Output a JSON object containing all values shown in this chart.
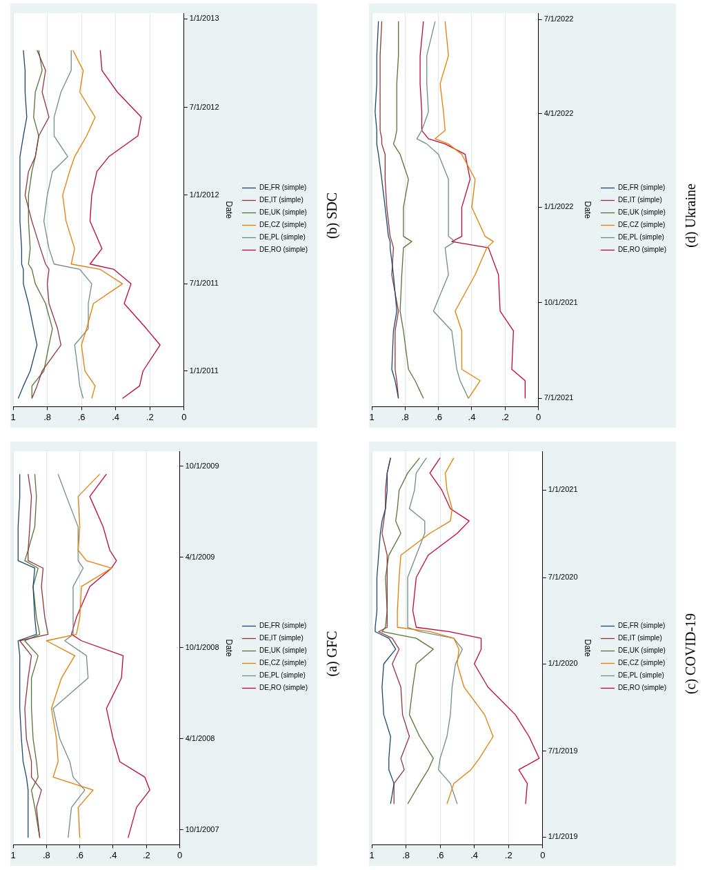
{
  "chart_data": [
    {
      "type": "line",
      "orientation": "horizontal",
      "annotations": [
        "(a) GFC"
      ],
      "ylabel": "Date",
      "legend": "right",
      "grid": "x",
      "marker": "none",
      "line_style": "solid",
      "ylim": [
        "2007-09-01",
        "2009-10-31"
      ],
      "yticks": [
        {
          "value": "2007-10-01",
          "label": "10/1/2007"
        },
        {
          "value": "2008-04-01",
          "label": "4/1/2008"
        },
        {
          "value": "2008-10-01",
          "label": "10/1/2008"
        },
        {
          "value": "2009-04-01",
          "label": "4/1/2009"
        },
        {
          "value": "2009-10-01",
          "label": "10/1/2009"
        }
      ],
      "xlim": [
        1,
        0
      ],
      "xticks": [
        {
          "value": 0,
          "label": "0"
        },
        {
          "value": 0.2,
          "label": ".2"
        },
        {
          "value": 0.4,
          "label": ".4"
        },
        {
          "value": 0.6,
          "label": ".6"
        },
        {
          "value": 0.8,
          "label": ".8"
        },
        {
          "value": 1,
          "label": "1"
        }
      ],
      "x": [
        "2007-09-15",
        "2007-11-15",
        "2007-12-20",
        "2008-01-15",
        "2008-02-15",
        "2008-04-01",
        "2008-06-01",
        "2008-08-01",
        "2008-09-15",
        "2008-10-15",
        "2008-10-28",
        "2008-12-01",
        "2009-02-01",
        "2009-03-10",
        "2009-03-25",
        "2009-04-15",
        "2009-06-01",
        "2009-08-01",
        "2009-09-15"
      ],
      "series": [
        {
          "name": "DE,FR (simple)",
          "color": "#1a476f",
          "values": [
            0.91,
            0.91,
            0.91,
            0.92,
            0.94,
            0.95,
            0.96,
            0.96,
            0.96,
            0.97,
            0.86,
            0.87,
            0.88,
            0.87,
            0.97,
            0.97,
            0.97,
            0.96,
            0.96
          ]
        },
        {
          "name": "DE,IT (simple)",
          "color": "#90353b",
          "values": [
            0.84,
            0.86,
            0.83,
            0.89,
            0.89,
            0.92,
            0.93,
            0.91,
            0.89,
            0.96,
            0.79,
            0.81,
            0.83,
            0.82,
            0.91,
            0.91,
            0.9,
            0.89,
            0.91
          ]
        },
        {
          "name": "DE,UK (simple)",
          "color": "#55752f",
          "values": [
            0.84,
            0.87,
            0.89,
            0.85,
            0.86,
            0.88,
            0.89,
            0.89,
            0.85,
            0.93,
            0.84,
            0.86,
            0.88,
            0.85,
            0.93,
            0.91,
            0.87,
            0.86,
            0.87
          ]
        },
        {
          "name": "DE,CZ (simple)",
          "color": "#e37e00",
          "values": [
            0.6,
            0.61,
            0.52,
            0.76,
            0.73,
            0.74,
            0.77,
            0.71,
            0.63,
            0.8,
            0.62,
            0.6,
            0.59,
            0.41,
            0.56,
            0.61,
            0.6,
            0.61,
            0.48
          ]
        },
        {
          "name": "DE,PL (simple)",
          "color": "#6e8e84",
          "values": [
            0.67,
            0.65,
            0.57,
            0.64,
            0.66,
            0.72,
            0.76,
            0.55,
            0.56,
            0.69,
            0.64,
            0.64,
            0.64,
            0.58,
            0.61,
            0.61,
            0.61,
            0.68,
            0.73
          ]
        },
        {
          "name": "DE,RO (simple)",
          "color": "#c10534",
          "values": [
            0.31,
            0.26,
            0.18,
            0.21,
            0.36,
            0.4,
            0.44,
            0.35,
            0.34,
            0.59,
            0.65,
            0.62,
            0.54,
            0.41,
            0.38,
            0.42,
            0.46,
            0.54,
            0.44
          ]
        }
      ]
    },
    {
      "type": "line",
      "orientation": "horizontal",
      "annotations": [
        "(b) SDC"
      ],
      "ylabel": "Date",
      "legend": "right",
      "grid": "x",
      "marker": "none",
      "line_style": "solid",
      "ylim": [
        "2010-10-19",
        "2013-01-13"
      ],
      "yticks": [
        {
          "value": "2011-01-01",
          "label": "1/1/2011"
        },
        {
          "value": "2011-07-01",
          "label": "7/1/2011"
        },
        {
          "value": "2012-01-01",
          "label": "1/1/2012"
        },
        {
          "value": "2012-07-01",
          "label": "7/1/2012"
        },
        {
          "value": "2013-01-01",
          "label": "1/1/2013"
        }
      ],
      "xlim": [
        1,
        0
      ],
      "xticks": [
        {
          "value": 0,
          "label": "0"
        },
        {
          "value": 0.2,
          "label": ".2"
        },
        {
          "value": 0.4,
          "label": ".4"
        },
        {
          "value": 0.6,
          "label": ".6"
        },
        {
          "value": 0.8,
          "label": ".8"
        },
        {
          "value": 1,
          "label": "1"
        }
      ],
      "x": [
        "2010-11-05",
        "2010-12-01",
        "2011-01-01",
        "2011-02-24",
        "2011-03-30",
        "2011-05-21",
        "2011-07-01",
        "2011-07-31",
        "2011-08-11",
        "2011-09-12",
        "2011-11-08",
        "2012-01-01",
        "2012-02-19",
        "2012-03-21",
        "2012-05-03",
        "2012-06-11",
        "2012-08-02",
        "2012-09-16",
        "2012-10-28"
      ],
      "series": [
        {
          "name": "DE,FR (simple)",
          "color": "#1a476f",
          "values": [
            0.97,
            0.94,
            0.9,
            0.86,
            0.88,
            0.91,
            0.94,
            0.94,
            0.95,
            0.95,
            0.96,
            0.96,
            0.96,
            0.96,
            0.94,
            0.92,
            0.93,
            0.93,
            0.94
          ]
        },
        {
          "name": "DE,IT (simple)",
          "color": "#90353b",
          "values": [
            0.89,
            0.86,
            0.83,
            0.72,
            0.74,
            0.79,
            0.8,
            0.79,
            0.81,
            0.84,
            0.89,
            0.93,
            0.91,
            0.87,
            0.85,
            0.79,
            0.83,
            0.81,
            0.86
          ]
        },
        {
          "name": "DE,UK (simple)",
          "color": "#55752f",
          "values": [
            0.89,
            0.89,
            0.82,
            0.79,
            0.77,
            0.81,
            0.87,
            0.89,
            0.91,
            0.9,
            0.91,
            0.91,
            0.89,
            0.87,
            0.85,
            0.88,
            0.87,
            0.83,
            0.85
          ]
        },
        {
          "name": "DE,CZ (simple)",
          "color": "#e37e00",
          "values": [
            0.54,
            0.52,
            0.58,
            0.6,
            0.57,
            0.53,
            0.36,
            0.49,
            0.66,
            0.64,
            0.69,
            0.71,
            0.67,
            0.64,
            0.57,
            0.52,
            0.61,
            0.59,
            0.65
          ]
        },
        {
          "name": "DE,PL (simple)",
          "color": "#6e8e84",
          "values": [
            0.59,
            0.61,
            0.62,
            0.64,
            0.56,
            0.56,
            0.54,
            0.61,
            0.76,
            0.79,
            0.82,
            0.8,
            0.77,
            0.68,
            0.76,
            0.76,
            0.72,
            0.66,
            0.66
          ]
        },
        {
          "name": "DE,RO (simple)",
          "color": "#c10534",
          "values": [
            0.36,
            0.26,
            0.24,
            0.14,
            0.22,
            0.35,
            0.31,
            0.41,
            0.55,
            0.48,
            0.55,
            0.54,
            0.51,
            0.44,
            0.27,
            0.25,
            0.39,
            0.48,
            0.49
          ]
        }
      ]
    },
    {
      "type": "line",
      "orientation": "horizontal",
      "annotations": [
        "(c) COVID-19"
      ],
      "ylabel": "Date",
      "legend": "right",
      "grid": "x",
      "marker": "none",
      "line_style": "solid",
      "ylim": [
        "2018-12-16",
        "2021-03-24"
      ],
      "yticks": [
        {
          "value": "2019-01-01",
          "label": "1/1/2019"
        },
        {
          "value": "2019-07-01",
          "label": "7/1/2019"
        },
        {
          "value": "2020-01-01",
          "label": "1/1/2020"
        },
        {
          "value": "2020-07-01",
          "label": "7/1/2020"
        },
        {
          "value": "2021-01-01",
          "label": "1/1/2021"
        }
      ],
      "xlim": [
        1,
        0
      ],
      "xticks": [
        {
          "value": 0,
          "label": "0"
        },
        {
          "value": 0.2,
          "label": ".2"
        },
        {
          "value": 0.4,
          "label": ".4"
        },
        {
          "value": 0.6,
          "label": ".6"
        },
        {
          "value": 0.8,
          "label": ".8"
        },
        {
          "value": 1,
          "label": "1"
        }
      ],
      "x": [
        "2019-03-12",
        "2019-04-24",
        "2019-05-23",
        "2019-06-16",
        "2019-08-01",
        "2019-09-16",
        "2019-11-13",
        "2020-01-01",
        "2020-02-01",
        "2020-02-24",
        "2020-03-09",
        "2020-03-18",
        "2020-04-22",
        "2020-07-01",
        "2020-08-17",
        "2020-10-02",
        "2020-10-28",
        "2020-11-23",
        "2021-01-01",
        "2021-02-06",
        "2021-03-10"
      ],
      "series": [
        {
          "name": "DE,FR (simple)",
          "color": "#1a476f",
          "values": [
            0.89,
            0.87,
            0.9,
            0.9,
            0.89,
            0.93,
            0.94,
            0.93,
            0.86,
            0.9,
            0.98,
            0.98,
            0.97,
            0.97,
            0.96,
            0.95,
            0.94,
            0.92,
            0.91,
            0.91,
            0.89
          ]
        },
        {
          "name": "DE,IT (simple)",
          "color": "#90353b",
          "values": [
            0.87,
            0.87,
            0.81,
            0.83,
            0.78,
            0.82,
            0.83,
            0.88,
            0.84,
            0.88,
            0.96,
            0.91,
            0.91,
            0.91,
            0.91,
            0.94,
            0.93,
            0.92,
            0.92,
            0.91,
            0.89
          ]
        },
        {
          "name": "DE,UK (simple)",
          "color": "#55752f",
          "values": [
            0.79,
            0.72,
            0.67,
            0.64,
            0.72,
            0.78,
            0.76,
            0.74,
            0.64,
            0.74,
            0.94,
            0.92,
            0.91,
            0.92,
            0.9,
            0.83,
            0.86,
            0.85,
            0.84,
            0.79,
            0.72
          ]
        },
        {
          "name": "DE,CZ (simple)",
          "color": "#e37e00",
          "values": [
            0.56,
            0.52,
            0.42,
            0.37,
            0.29,
            0.34,
            0.46,
            0.5,
            0.49,
            0.52,
            0.66,
            0.85,
            0.85,
            0.84,
            0.83,
            0.66,
            0.54,
            0.53,
            0.56,
            0.57,
            0.52
          ]
        },
        {
          "name": "DE,PL (simple)",
          "color": "#6e8e84",
          "values": [
            0.5,
            0.54,
            0.61,
            0.6,
            0.56,
            0.54,
            0.53,
            0.51,
            0.47,
            0.52,
            0.72,
            0.79,
            0.79,
            0.79,
            0.74,
            0.69,
            0.69,
            0.78,
            0.75,
            0.74,
            0.68
          ]
        },
        {
          "name": "DE,RO (simple)",
          "color": "#c10534",
          "values": [
            0.1,
            0.09,
            0.14,
            0.02,
            0.08,
            0.16,
            0.32,
            0.4,
            0.36,
            0.36,
            0.55,
            0.74,
            0.76,
            0.74,
            0.67,
            0.5,
            0.43,
            0.54,
            0.59,
            0.66,
            0.6
          ]
        }
      ]
    },
    {
      "type": "line",
      "orientation": "horizontal",
      "annotations": [
        "(d) Ukraine"
      ],
      "ylabel": "Date",
      "legend": "right",
      "grid": "x",
      "marker": "none",
      "line_style": "solid",
      "ylim": [
        "2021-06-23",
        "2022-07-07"
      ],
      "yticks": [
        {
          "value": "2021-07-01",
          "label": "7/1/2021"
        },
        {
          "value": "2021-10-01",
          "label": "10/1/2021"
        },
        {
          "value": "2022-01-01",
          "label": "1/1/2022"
        },
        {
          "value": "2022-04-01",
          "label": "4/1/2022"
        },
        {
          "value": "2022-07-01",
          "label": "7/1/2022"
        }
      ],
      "xlim": [
        1,
        0
      ],
      "xticks": [
        {
          "value": 0,
          "label": "0"
        },
        {
          "value": 0.2,
          "label": ".2"
        },
        {
          "value": 0.4,
          "label": ".4"
        },
        {
          "value": 0.6,
          "label": ".6"
        },
        {
          "value": 0.8,
          "label": ".8"
        },
        {
          "value": 1,
          "label": "1"
        }
      ],
      "x": [
        "2021-07-01",
        "2021-07-18",
        "2021-07-29",
        "2021-09-04",
        "2021-09-23",
        "2021-10-28",
        "2021-11-23",
        "2021-11-29",
        "2021-12-04",
        "2022-01-01",
        "2022-01-28",
        "2022-02-21",
        "2022-03-03",
        "2022-03-08",
        "2022-03-16",
        "2022-04-03",
        "2022-04-30",
        "2022-05-27",
        "2022-06-29"
      ],
      "series": [
        {
          "name": "DE,FR (simple)",
          "color": "#1a476f",
          "values": [
            0.84,
            0.86,
            0.88,
            0.87,
            0.85,
            0.87,
            0.89,
            0.89,
            0.9,
            0.92,
            0.94,
            0.96,
            0.97,
            0.97,
            0.97,
            0.98,
            0.97,
            0.97,
            0.96
          ]
        },
        {
          "name": "DE,IT (simple)",
          "color": "#90353b",
          "values": [
            0.84,
            0.85,
            0.86,
            0.86,
            0.84,
            0.88,
            0.87,
            0.88,
            0.89,
            0.91,
            0.92,
            0.92,
            0.94,
            0.94,
            0.95,
            0.95,
            0.95,
            0.95,
            0.94
          ]
        },
        {
          "name": "DE,UK (simple)",
          "color": "#55752f",
          "values": [
            0.69,
            0.74,
            0.78,
            0.81,
            0.83,
            0.82,
            0.81,
            0.76,
            0.81,
            0.81,
            0.78,
            0.83,
            0.87,
            0.86,
            0.85,
            0.85,
            0.85,
            0.84,
            0.84
          ]
        },
        {
          "name": "DE,CZ (simple)",
          "color": "#e37e00",
          "values": [
            0.42,
            0.35,
            0.46,
            0.46,
            0.5,
            0.38,
            0.31,
            0.27,
            0.32,
            0.4,
            0.38,
            0.46,
            0.54,
            0.62,
            0.56,
            0.57,
            0.59,
            0.54,
            0.56
          ]
        },
        {
          "name": "DE,PL (simple)",
          "color": "#6e8e84",
          "values": [
            0.42,
            0.47,
            0.49,
            0.52,
            0.63,
            0.54,
            0.56,
            0.5,
            0.54,
            0.54,
            0.54,
            0.6,
            0.67,
            0.73,
            0.7,
            0.66,
            0.67,
            0.67,
            0.62
          ]
        },
        {
          "name": "DE,RO (simple)",
          "color": "#c10534",
          "values": [
            0.08,
            0.08,
            0.16,
            0.15,
            0.23,
            0.24,
            0.3,
            0.52,
            0.46,
            0.46,
            0.41,
            0.44,
            0.56,
            0.66,
            0.7,
            0.7,
            0.71,
            0.71,
            0.69
          ]
        }
      ]
    }
  ]
}
